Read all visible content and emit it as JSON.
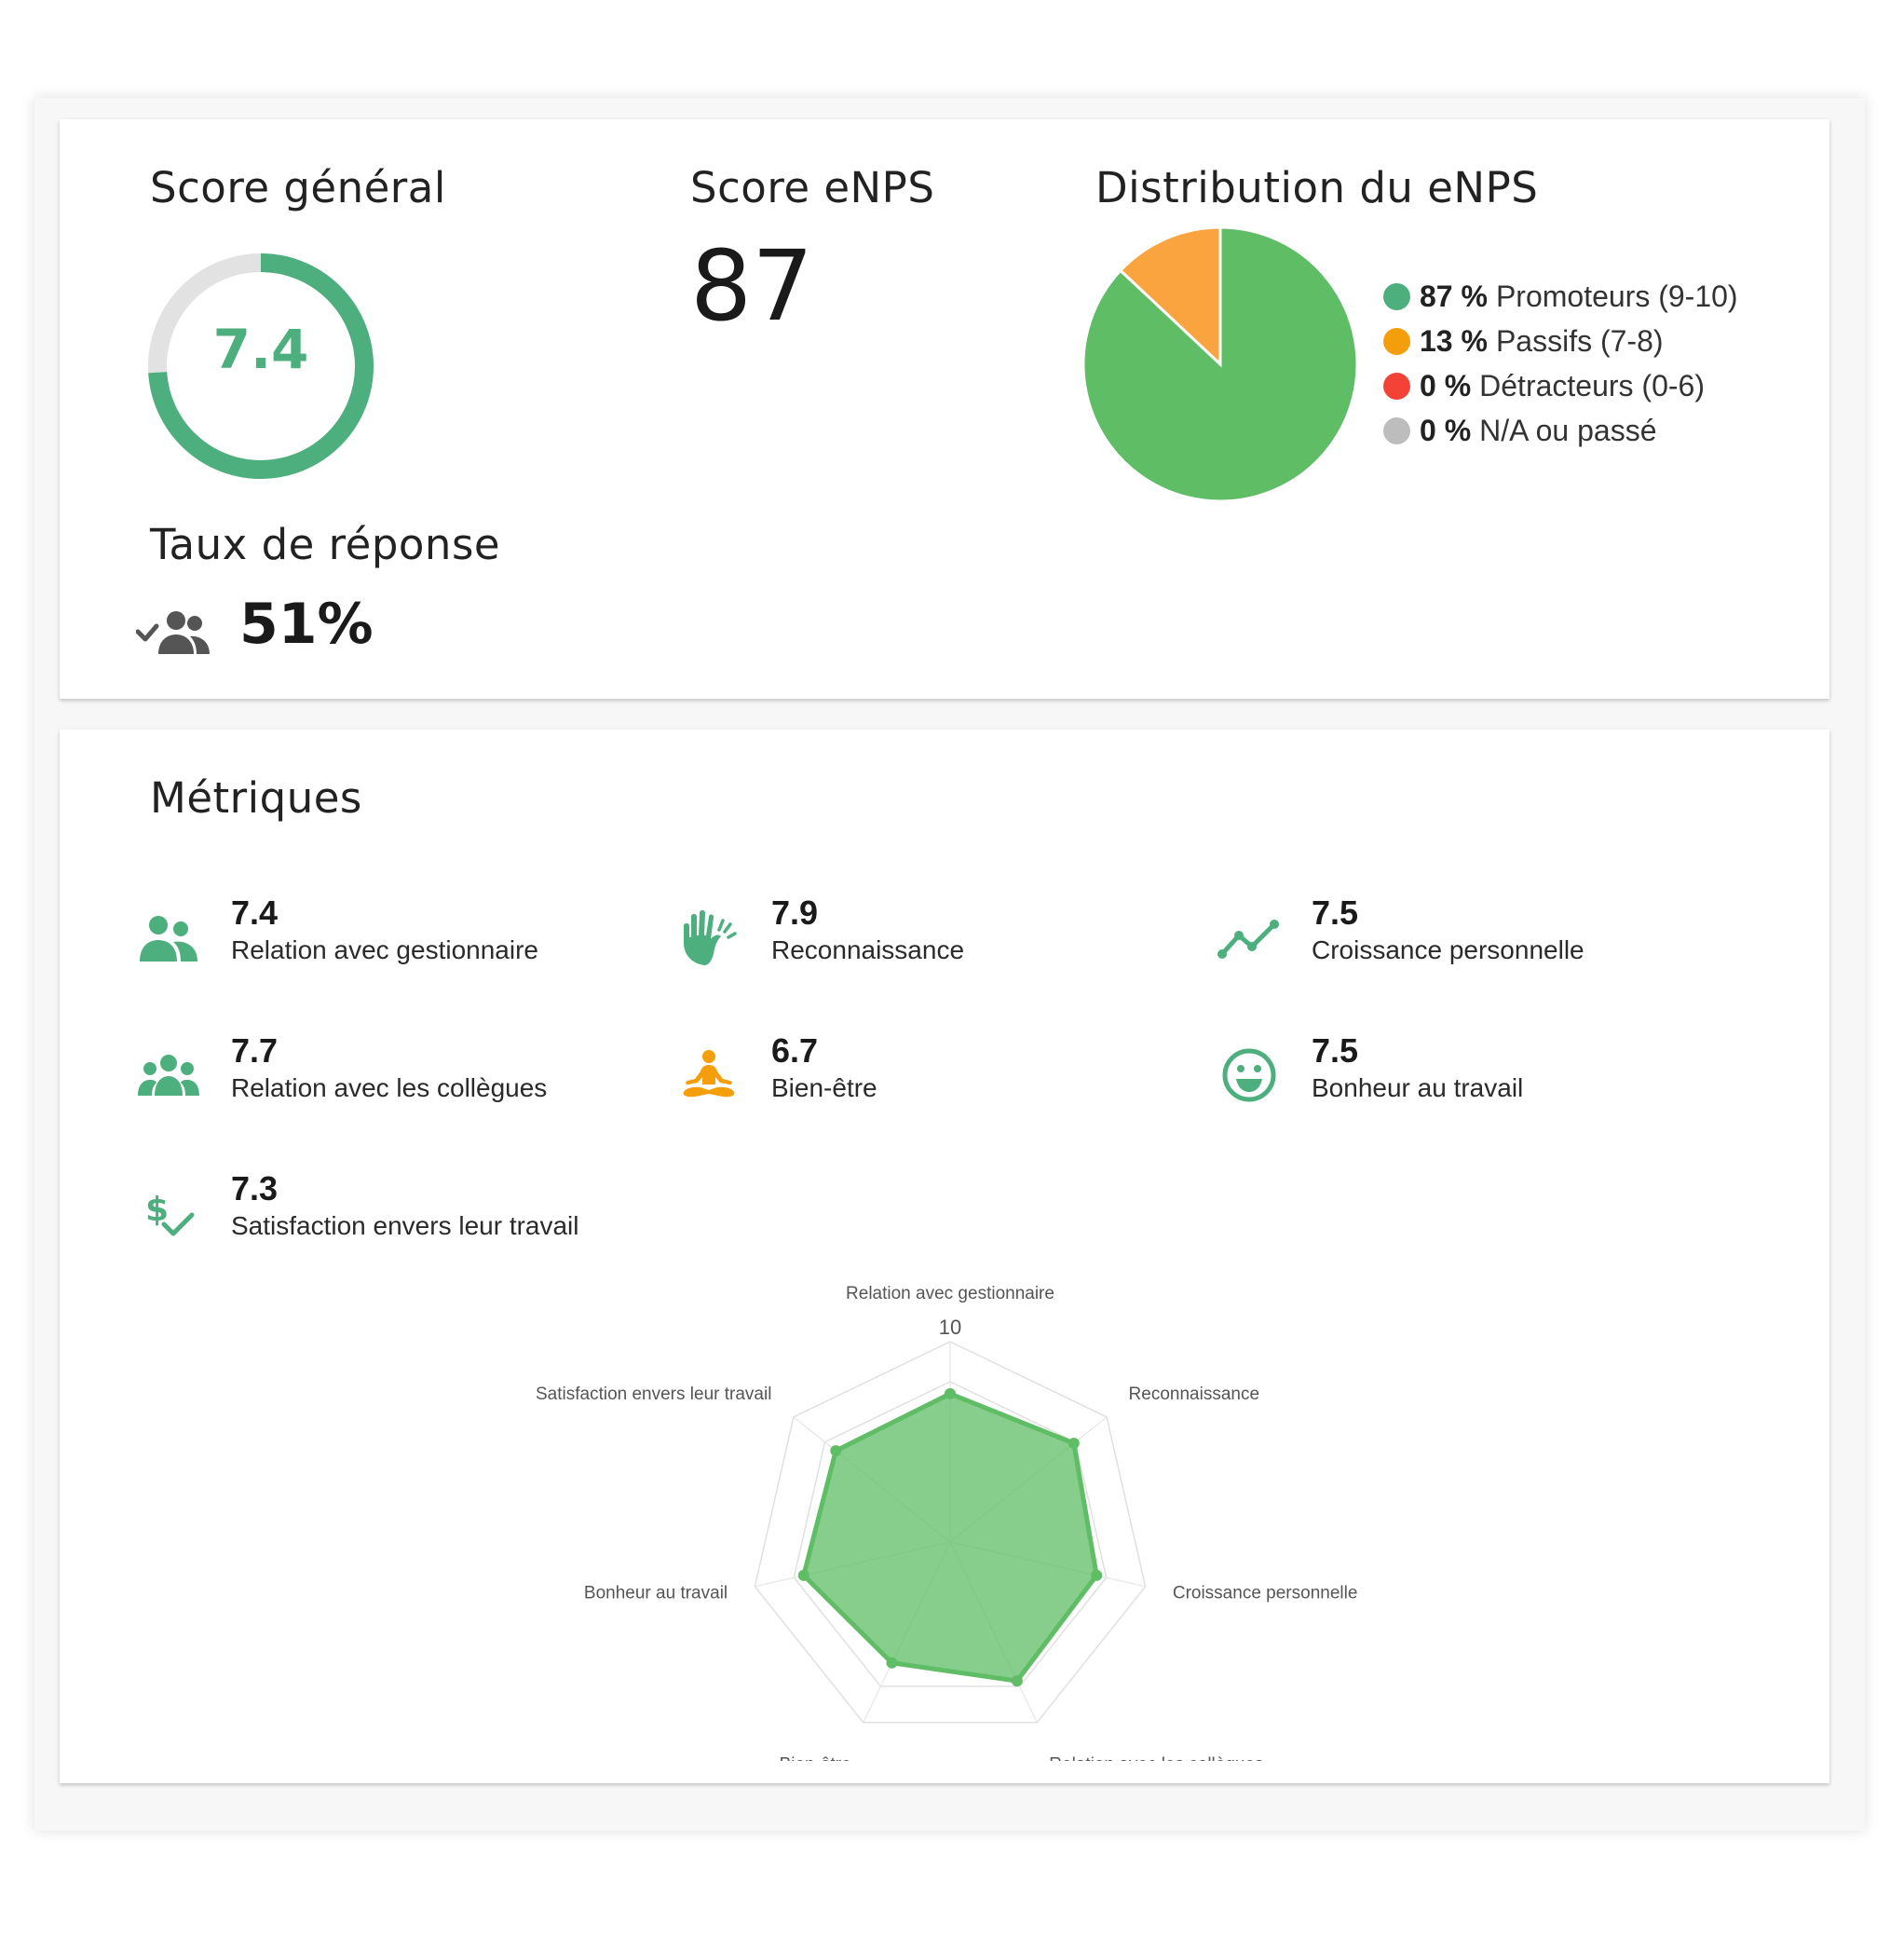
{
  "summary": {
    "overall_title": "Score général",
    "overall_score": "7.4",
    "overall_score_fraction": 0.74,
    "enps_title": "Score eNPS",
    "enps_value": "87",
    "distribution_title": "Distribution du eNPS",
    "response_title": "Taux de réponse",
    "response_rate": "51%"
  },
  "distribution": {
    "legend": [
      {
        "pct": "87 %",
        "label": "Promoteurs (9-10)",
        "color": "#4caf7d"
      },
      {
        "pct": "13 %",
        "label": "Passifs (7-8)",
        "color": "#f59e0b"
      },
      {
        "pct": "0 %",
        "label": "Détracteurs (0-6)",
        "color": "#f44336"
      },
      {
        "pct": "0 %",
        "label": "N/A ou passé",
        "color": "#bdbdbd"
      }
    ]
  },
  "chart_data": [
    {
      "type": "pie",
      "categories": [
        "Promoteurs (9-10)",
        "Passifs (7-8)",
        "Détracteurs (0-6)",
        "N/A ou passé"
      ],
      "values": [
        87,
        13,
        0,
        0
      ],
      "colors": [
        "#5fbd66",
        "#f9a43e",
        "#f44336",
        "#bdbdbd"
      ]
    },
    {
      "type": "radar",
      "categories": [
        "Relation avec gestionnaire",
        "Reconnaissance",
        "Croissance personnelle",
        "Relation avec les collègues",
        "Bien-être",
        "Bonheur au travail",
        "Satisfaction envers leur travail"
      ],
      "values": [
        7.4,
        7.9,
        7.5,
        7.7,
        6.7,
        7.5,
        7.3
      ],
      "max": 10,
      "tick_label": "10",
      "color": "#5fbd66"
    }
  ],
  "metrics": {
    "title": "Métriques",
    "items": [
      {
        "value": "7.4",
        "label": "Relation avec gestionnaire",
        "icon": "manager-icon",
        "color": "#4caf7d"
      },
      {
        "value": "7.9",
        "label": "Reconnaissance",
        "icon": "clapping-hands-icon",
        "color": "#4caf7d"
      },
      {
        "value": "7.5",
        "label": "Croissance personnelle",
        "icon": "growth-trend-icon",
        "color": "#4caf7d"
      },
      {
        "value": "7.7",
        "label": "Relation avec les collègues",
        "icon": "colleagues-icon",
        "color": "#4caf7d"
      },
      {
        "value": "6.7",
        "label": "Bien-être",
        "icon": "meditation-icon",
        "color": "#f59e0b"
      },
      {
        "value": "7.5",
        "label": "Bonheur au travail",
        "icon": "smiley-icon",
        "color": "#4caf7d"
      },
      {
        "value": "7.3",
        "label": "Satisfaction envers leur travail",
        "icon": "money-check-icon",
        "color": "#4caf7d"
      }
    ]
  }
}
